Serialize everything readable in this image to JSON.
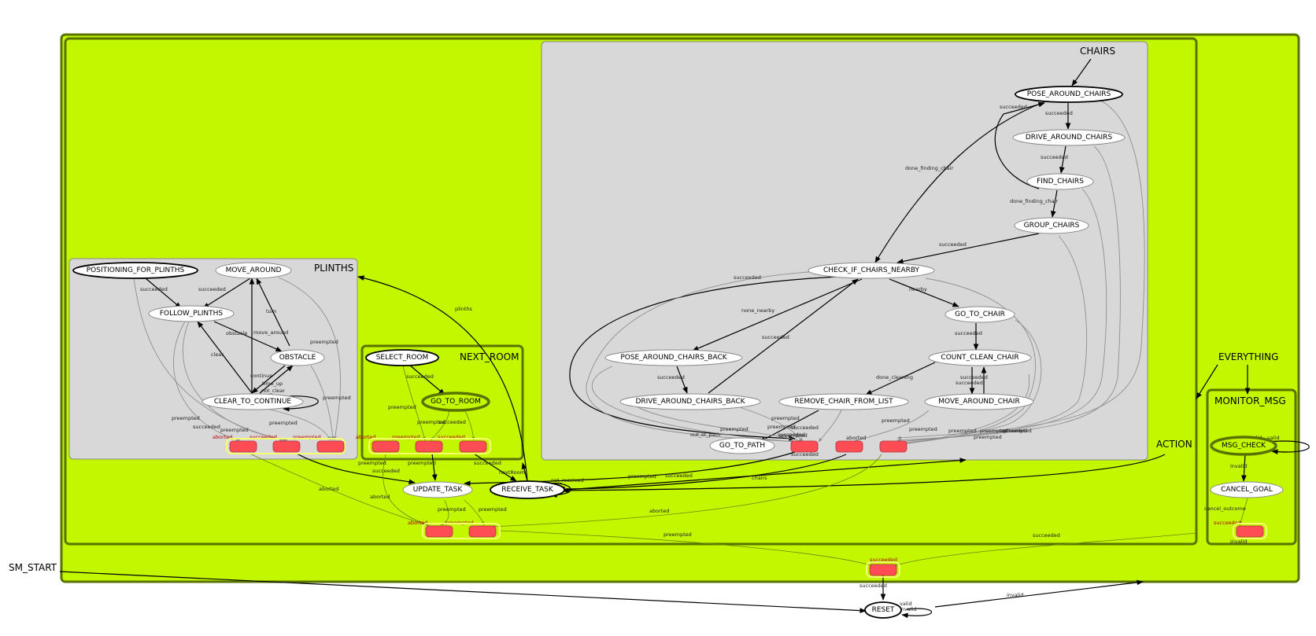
{
  "containers": {
    "everything": "EVERYTHING",
    "action": "ACTION",
    "chairs": "CHAIRS",
    "plinths": "PLINTHS",
    "next_room": "NEXT_ROOM",
    "monitor_msg": "MONITOR_MSG",
    "sm_start": "SM_START"
  },
  "states": {
    "pose_around_chairs": "POSE_AROUND_CHAIRS",
    "drive_around_chairs": "DRIVE_AROUND_CHAIRS",
    "find_chairs": "FIND_CHAIRS",
    "group_chairs": "GROUP_CHAIRS",
    "check_if_chairs_nearby": "CHECK_IF_CHAIRS_NEARBY",
    "go_to_chair": "GO_TO_CHAIR",
    "pose_around_chairs_back": "POSE_AROUND_CHAIRS_BACK",
    "count_clean_chair": "COUNT_CLEAN_CHAIR",
    "drive_around_chairs_back": "DRIVE_AROUND_CHAIRS_BACK",
    "remove_chair_from_list": "REMOVE_CHAIR_FROM_LIST",
    "move_around_chair": "MOVE_AROUND_CHAIR",
    "go_to_path": "GO_TO_PATH",
    "positioning_for_plinths": "POSITIONING_FOR_PLINTHS",
    "move_around": "MOVE_AROUND",
    "follow_plinths": "FOLLOW_PLINTHS",
    "obstacle": "OBSTACLE",
    "clear_to_continue": "CLEAR_TO_CONTINUE",
    "select_room": "SELECT_ROOM",
    "go_to_room": "GO_TO_ROOM",
    "update_task": "UPDATE_TASK",
    "receive_task": "RECEIVE_TASK",
    "msg_check": "MSG_CHECK",
    "cancel_goal": "CANCEL_GOAL",
    "reset": "RESET"
  },
  "edge_labels": {
    "succeeded": "succeeded",
    "done_finding_chair": "done_finding_chair",
    "nearby": "nearby",
    "none_nearby": "none_nearby",
    "done_cleaning": "done_cleaning",
    "preempted": "preempted",
    "aborted": "aborted",
    "out_of_path": "out_of_path",
    "obstacle": "obstacle",
    "move_around": "move_around",
    "turn": "turn",
    "clear": "clear",
    "continue": "continue",
    "time_up": "time_up",
    "not_clear": "not_clear",
    "plinths": "plinths",
    "nextRoom": "nextRoom",
    "not_received": "not_received",
    "chairs": "chairs",
    "invalid": "invalid",
    "valid": "valid",
    "cancel_outcome": "cancel_outcome"
  },
  "colors": {
    "container_fill": "#c2f700",
    "container_stroke": "#5a7300",
    "subcontainer_fill": "#d8d8d8",
    "outcome_fill": "#ff4c55",
    "edge_dark": "#000000",
    "edge_grey": "#8f8f8f"
  }
}
